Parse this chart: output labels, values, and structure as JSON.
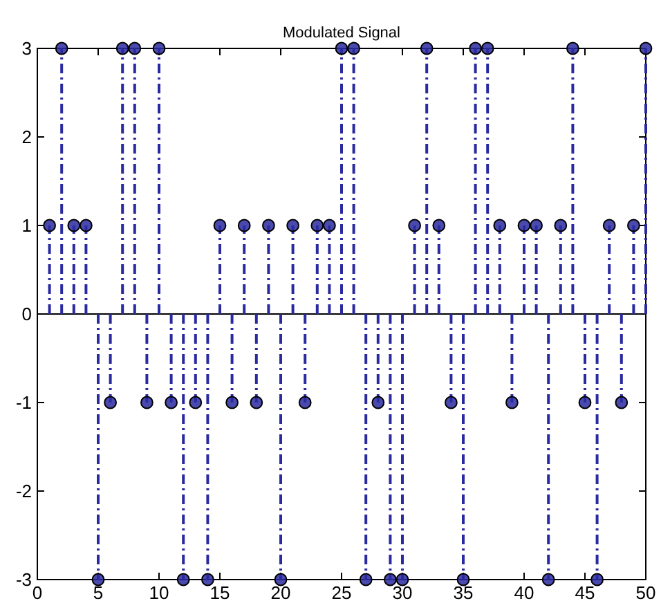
{
  "chart_data": {
    "type": "lollipop",
    "title": "Modulated Signal",
    "x": [
      1,
      2,
      3,
      4,
      5,
      6,
      7,
      8,
      9,
      10,
      11,
      12,
      13,
      14,
      15,
      16,
      17,
      18,
      19,
      20,
      21,
      22,
      23,
      24,
      25,
      26,
      27,
      28,
      29,
      30,
      31,
      32,
      33,
      34,
      35,
      36,
      37,
      38,
      39,
      40,
      41,
      42,
      43,
      44,
      45,
      46,
      47,
      48,
      49,
      50
    ],
    "series": [
      {
        "color": "#2a2aa0",
        "values": [
          1,
          3,
          1,
          1,
          -3,
          -1,
          3,
          3,
          -1,
          3,
          -1,
          -3,
          -1,
          -3,
          1,
          -1,
          1,
          -1,
          1,
          -3,
          1,
          -1,
          1,
          1,
          3,
          3,
          -3,
          -1,
          -3,
          -3,
          1,
          3,
          1,
          -1,
          -3,
          3,
          3,
          1,
          -1,
          1,
          1,
          -3,
          1,
          3,
          -1,
          -3,
          1,
          -1,
          1,
          3
        ]
      }
    ],
    "xlim": [
      0,
      50
    ],
    "xticks": [
      0,
      5,
      10,
      15,
      20,
      25,
      30,
      35,
      40,
      45,
      50
    ],
    "ylim": [
      -3,
      3
    ],
    "yticks": [
      -3,
      -2,
      -1,
      0,
      1,
      2,
      3
    ],
    "marker": "circle",
    "line_style": "dashed"
  }
}
